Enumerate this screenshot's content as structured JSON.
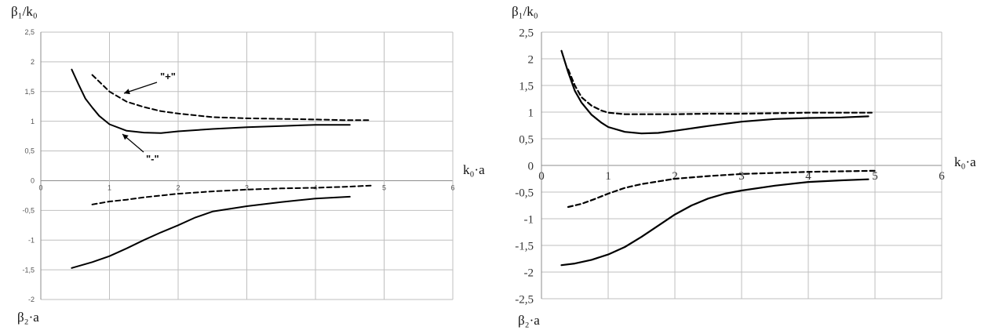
{
  "chart_data": [
    {
      "type": "line",
      "title": "",
      "ylabel_top": "β₁/k₀",
      "ylabel_bottom": "β₂·a",
      "xlabel": "k₀·a",
      "xlim": [
        0,
        6
      ],
      "ylim": [
        -2,
        2.5
      ],
      "x_ticks": [
        0,
        1,
        2,
        3,
        4,
        5,
        6
      ],
      "y_ticks": [
        2.5,
        2,
        1.5,
        1,
        0.5,
        0,
        -0.5,
        -1,
        -1.5,
        -2
      ],
      "x_tick_labels": [
        "0",
        "1",
        "2",
        "3",
        "4",
        "5",
        "6"
      ],
      "y_tick_labels": [
        "2,5",
        "2",
        "1,5",
        "1",
        "0,5",
        "0",
        "-0,5",
        "-1",
        "-1,5",
        "-2"
      ],
      "grid": true,
      "annotations": [
        "\"+\"",
        "\"-\""
      ],
      "series": [
        {
          "style": "dashed",
          "points": [
            [
              0.75,
              1.78
            ],
            [
              1.0,
              1.5
            ],
            [
              1.25,
              1.33
            ],
            [
              1.5,
              1.24
            ],
            [
              1.75,
              1.17
            ],
            [
              2.0,
              1.13
            ],
            [
              2.5,
              1.07
            ],
            [
              3.0,
              1.05
            ],
            [
              3.5,
              1.04
            ],
            [
              4.0,
              1.03
            ],
            [
              4.4,
              1.02
            ],
            [
              4.8,
              1.02
            ]
          ]
        },
        {
          "style": "solid",
          "points": [
            [
              0.45,
              1.87
            ],
            [
              0.55,
              1.62
            ],
            [
              0.65,
              1.38
            ],
            [
              0.75,
              1.23
            ],
            [
              0.85,
              1.09
            ],
            [
              1.0,
              0.95
            ],
            [
              1.25,
              0.84
            ],
            [
              1.5,
              0.81
            ],
            [
              1.75,
              0.8
            ],
            [
              2.0,
              0.83
            ],
            [
              2.5,
              0.87
            ],
            [
              3.0,
              0.9
            ],
            [
              3.5,
              0.92
            ],
            [
              4.0,
              0.94
            ],
            [
              4.5,
              0.94
            ]
          ]
        },
        {
          "style": "dashed",
          "points": [
            [
              0.75,
              -0.4
            ],
            [
              1.0,
              -0.35
            ],
            [
              1.25,
              -0.32
            ],
            [
              1.5,
              -0.28
            ],
            [
              1.75,
              -0.25
            ],
            [
              2.0,
              -0.22
            ],
            [
              2.5,
              -0.18
            ],
            [
              3.0,
              -0.15
            ],
            [
              3.5,
              -0.13
            ],
            [
              4.0,
              -0.12
            ],
            [
              4.5,
              -0.1
            ],
            [
              4.85,
              -0.08
            ]
          ]
        },
        {
          "style": "solid",
          "points": [
            [
              0.45,
              -1.47
            ],
            [
              0.75,
              -1.37
            ],
            [
              1.0,
              -1.27
            ],
            [
              1.25,
              -1.14
            ],
            [
              1.5,
              -1.0
            ],
            [
              1.75,
              -0.87
            ],
            [
              2.0,
              -0.75
            ],
            [
              2.25,
              -0.62
            ],
            [
              2.5,
              -0.52
            ],
            [
              3.0,
              -0.43
            ],
            [
              3.5,
              -0.36
            ],
            [
              4.0,
              -0.3
            ],
            [
              4.5,
              -0.27
            ]
          ]
        }
      ]
    },
    {
      "type": "line",
      "title": "",
      "ylabel_top": "β₁/k₀",
      "ylabel_bottom": "β₂·a",
      "xlabel": "k₀·a",
      "xlim": [
        0,
        6
      ],
      "ylim": [
        -2.5,
        2.5
      ],
      "x_ticks": [
        0,
        1,
        2,
        3,
        4,
        5,
        6
      ],
      "y_ticks": [
        2.5,
        2,
        1.5,
        1,
        0.5,
        0,
        -0.5,
        -1,
        -1.5,
        -2,
        -2.5
      ],
      "x_tick_labels": [
        "0",
        "1",
        "2",
        "3",
        "4",
        "5",
        "6"
      ],
      "y_tick_labels": [
        "2,5",
        "2",
        "1,5",
        "1",
        "0,5",
        "0",
        "-0,5",
        "-1",
        "-1,5",
        "-2",
        "-2,5"
      ],
      "grid": true,
      "series": [
        {
          "style": "dashed",
          "points": [
            [
              0.4,
              1.8
            ],
            [
              0.5,
              1.5
            ],
            [
              0.6,
              1.28
            ],
            [
              0.75,
              1.12
            ],
            [
              0.9,
              1.03
            ],
            [
              1.0,
              0.99
            ],
            [
              1.25,
              0.96
            ],
            [
              1.5,
              0.96
            ],
            [
              2.0,
              0.96
            ],
            [
              2.5,
              0.97
            ],
            [
              3.0,
              0.97
            ],
            [
              3.5,
              0.98
            ],
            [
              4.0,
              0.99
            ],
            [
              4.5,
              0.99
            ],
            [
              4.95,
              0.99
            ]
          ]
        },
        {
          "style": "solid",
          "points": [
            [
              0.3,
              2.15
            ],
            [
              0.4,
              1.75
            ],
            [
              0.5,
              1.4
            ],
            [
              0.6,
              1.18
            ],
            [
              0.75,
              0.95
            ],
            [
              0.9,
              0.8
            ],
            [
              1.0,
              0.72
            ],
            [
              1.25,
              0.63
            ],
            [
              1.5,
              0.6
            ],
            [
              1.75,
              0.61
            ],
            [
              2.0,
              0.65
            ],
            [
              2.5,
              0.74
            ],
            [
              3.0,
              0.82
            ],
            [
              3.5,
              0.87
            ],
            [
              4.0,
              0.89
            ],
            [
              4.5,
              0.9
            ],
            [
              4.9,
              0.92
            ]
          ]
        },
        {
          "style": "dashed",
          "points": [
            [
              0.4,
              -0.78
            ],
            [
              0.6,
              -0.72
            ],
            [
              0.8,
              -0.63
            ],
            [
              1.0,
              -0.53
            ],
            [
              1.25,
              -0.42
            ],
            [
              1.5,
              -0.35
            ],
            [
              2.0,
              -0.25
            ],
            [
              2.5,
              -0.2
            ],
            [
              3.0,
              -0.16
            ],
            [
              3.5,
              -0.14
            ],
            [
              4.0,
              -0.12
            ],
            [
              4.5,
              -0.11
            ],
            [
              5.0,
              -0.1
            ]
          ]
        },
        {
          "style": "solid",
          "points": [
            [
              0.3,
              -1.87
            ],
            [
              0.5,
              -1.84
            ],
            [
              0.75,
              -1.77
            ],
            [
              1.0,
              -1.67
            ],
            [
              1.25,
              -1.53
            ],
            [
              1.5,
              -1.34
            ],
            [
              1.75,
              -1.13
            ],
            [
              2.0,
              -0.92
            ],
            [
              2.25,
              -0.75
            ],
            [
              2.5,
              -0.62
            ],
            [
              2.75,
              -0.53
            ],
            [
              3.0,
              -0.47
            ],
            [
              3.5,
              -0.38
            ],
            [
              4.0,
              -0.31
            ],
            [
              4.5,
              -0.28
            ],
            [
              4.9,
              -0.26
            ]
          ]
        }
      ]
    }
  ]
}
